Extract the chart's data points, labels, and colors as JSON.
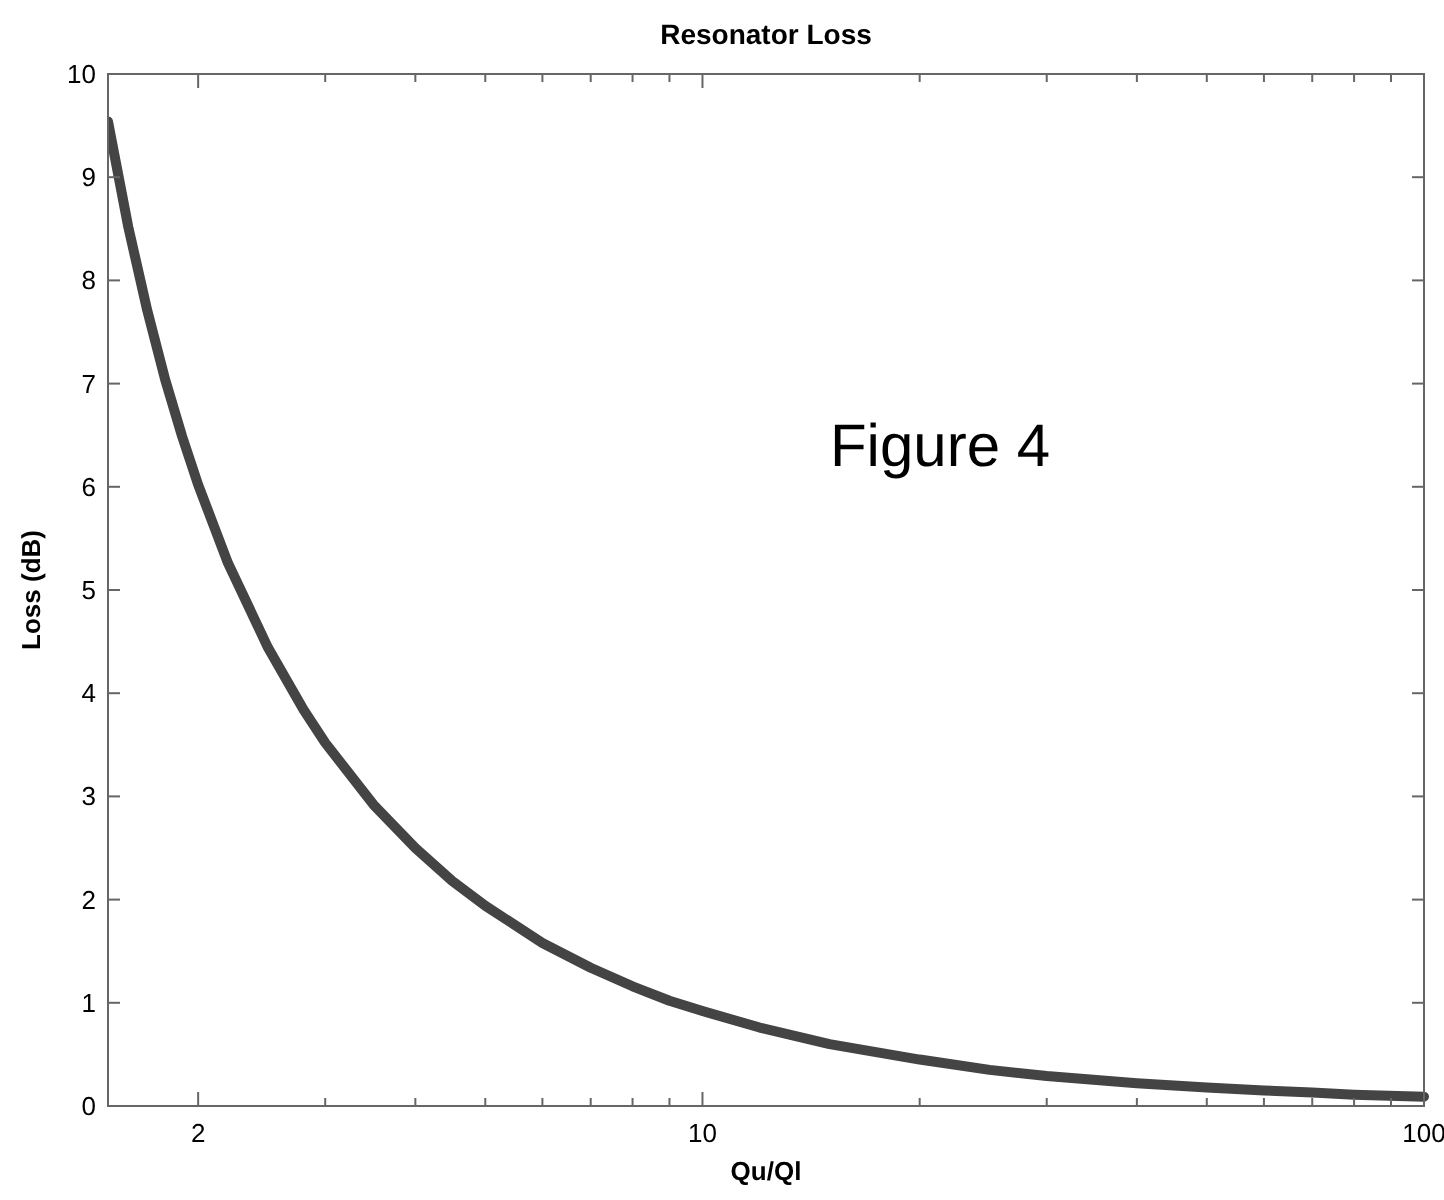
{
  "chart_data": {
    "type": "line",
    "title": "Resonator Loss",
    "xlabel": "Qu/Ql",
    "ylabel": "Loss (dB)",
    "log": "x",
    "xlim": [
      1.5,
      100
    ],
    "xticks": [
      2,
      {
        "value": 3,
        "label": null
      },
      {
        "value": 4,
        "label": null
      },
      {
        "value": 5,
        "label": null
      },
      {
        "value": 6,
        "label": null
      },
      {
        "value": 7,
        "label": null
      },
      {
        "value": 8,
        "label": null
      },
      {
        "value": 9,
        "label": null
      },
      10,
      {
        "value": 20,
        "label": null
      },
      {
        "value": 30,
        "label": null
      },
      {
        "value": 40,
        "label": null
      },
      {
        "value": 50,
        "label": null
      },
      {
        "value": 60,
        "label": null
      },
      {
        "value": 70,
        "label": null
      },
      {
        "value": 80,
        "label": null
      },
      {
        "value": 90,
        "label": null
      },
      100
    ],
    "ylim": [
      0,
      10
    ],
    "yticks": [
      0,
      1,
      2,
      3,
      4,
      5,
      6,
      7,
      8,
      9,
      10
    ],
    "grid": false,
    "marker": "none",
    "line_style": "solid",
    "annotations": [
      "Figure 4"
    ],
    "x": [
      1.5,
      1.6,
      1.7,
      1.8,
      1.9,
      2,
      2.2,
      2.5,
      2.8,
      3,
      3.5,
      4,
      4.5,
      5,
      6,
      7,
      8,
      9,
      10,
      12,
      15,
      20,
      25,
      30,
      40,
      50,
      60,
      70,
      80,
      100
    ],
    "series": [
      {
        "color": "#444444",
        "values": [
          9.54,
          8.52,
          7.71,
          7.04,
          6.49,
          6.02,
          5.26,
          4.44,
          3.84,
          3.52,
          2.92,
          2.5,
          2.18,
          1.94,
          1.58,
          1.34,
          1.16,
          1.02,
          0.92,
          0.76,
          0.6,
          0.45,
          0.35,
          0.29,
          0.22,
          0.18,
          0.15,
          0.13,
          0.11,
          0.09
        ]
      }
    ]
  }
}
